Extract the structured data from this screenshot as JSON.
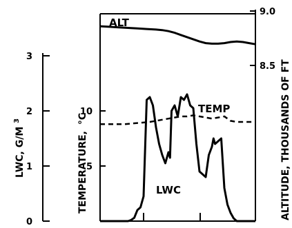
{
  "chart_data": {
    "type": "line",
    "series_labels": {
      "alt": "ALT",
      "temp": "TEMP",
      "lwc": "LWC"
    },
    "axes": {
      "lwc": {
        "label": "LWC, G/M",
        "label_sup": "3",
        "ticks": [
          "0",
          "1",
          "2",
          "3"
        ],
        "range": [
          0,
          3
        ]
      },
      "temp": {
        "label": "TEMPERATURE,",
        "label_unit": "°C",
        "ticks": [
          "5",
          "10"
        ]
      },
      "alt": {
        "label": "ALTITUDE, THOUSANDS OF FT",
        "ticks": [
          "8.5",
          "9.0"
        ],
        "range": [
          8.2,
          9.0
        ]
      }
    },
    "series": [
      {
        "key": "alt",
        "name": "ALT",
        "axis": "alt",
        "x": [
          0,
          3,
          6,
          9,
          12,
          15,
          18,
          20,
          22,
          24,
          26,
          28,
          30,
          32,
          34,
          36,
          38,
          40,
          42,
          44,
          46,
          48,
          50
        ],
        "y": [
          8.86,
          8.855,
          8.85,
          8.845,
          8.84,
          8.835,
          8.83,
          8.825,
          8.815,
          8.8,
          8.78,
          8.76,
          8.74,
          8.72,
          8.705,
          8.7,
          8.7,
          8.705,
          8.715,
          8.72,
          8.715,
          8.705,
          8.695
        ]
      },
      {
        "key": "temp",
        "name": "TEMP",
        "axis": "temp",
        "x": [
          0,
          4,
          8,
          12,
          16,
          20,
          24,
          26,
          28,
          30,
          32,
          34,
          36,
          38,
          40,
          42,
          44,
          46,
          48,
          50
        ],
        "y": [
          8.8,
          8.8,
          8.8,
          8.9,
          9.0,
          9.2,
          9.4,
          9.5,
          9.5,
          9.6,
          9.5,
          9.4,
          9.3,
          9.4,
          9.5,
          9.1,
          9.0,
          9.0,
          9.0,
          9.0
        ]
      },
      {
        "key": "lwc",
        "name": "LWC",
        "axis": "lwc",
        "x": [
          0,
          2,
          4,
          6,
          8,
          9,
          10,
          11,
          12,
          13,
          14,
          15,
          16,
          17,
          18,
          19,
          20,
          21,
          22,
          22.5,
          23,
          24,
          25,
          26,
          27,
          28,
          29,
          30,
          31,
          32,
          33,
          34,
          35,
          36,
          36.5,
          37,
          38,
          39,
          40,
          41,
          42,
          43,
          44,
          45,
          46,
          47,
          48,
          50
        ],
        "y": [
          0,
          0,
          0,
          0,
          0,
          0,
          0.02,
          0.06,
          0.2,
          0.25,
          0.45,
          2.2,
          2.25,
          2.1,
          1.7,
          1.4,
          1.2,
          1.05,
          1.25,
          1.15,
          2.0,
          2.1,
          1.9,
          2.25,
          2.2,
          2.3,
          2.1,
          2.05,
          1.4,
          0.9,
          0.85,
          0.8,
          1.2,
          1.35,
          1.5,
          1.4,
          1.45,
          1.5,
          0.6,
          0.3,
          0.15,
          0.05,
          0,
          0,
          0,
          0,
          0,
          0
        ]
      }
    ]
  }
}
